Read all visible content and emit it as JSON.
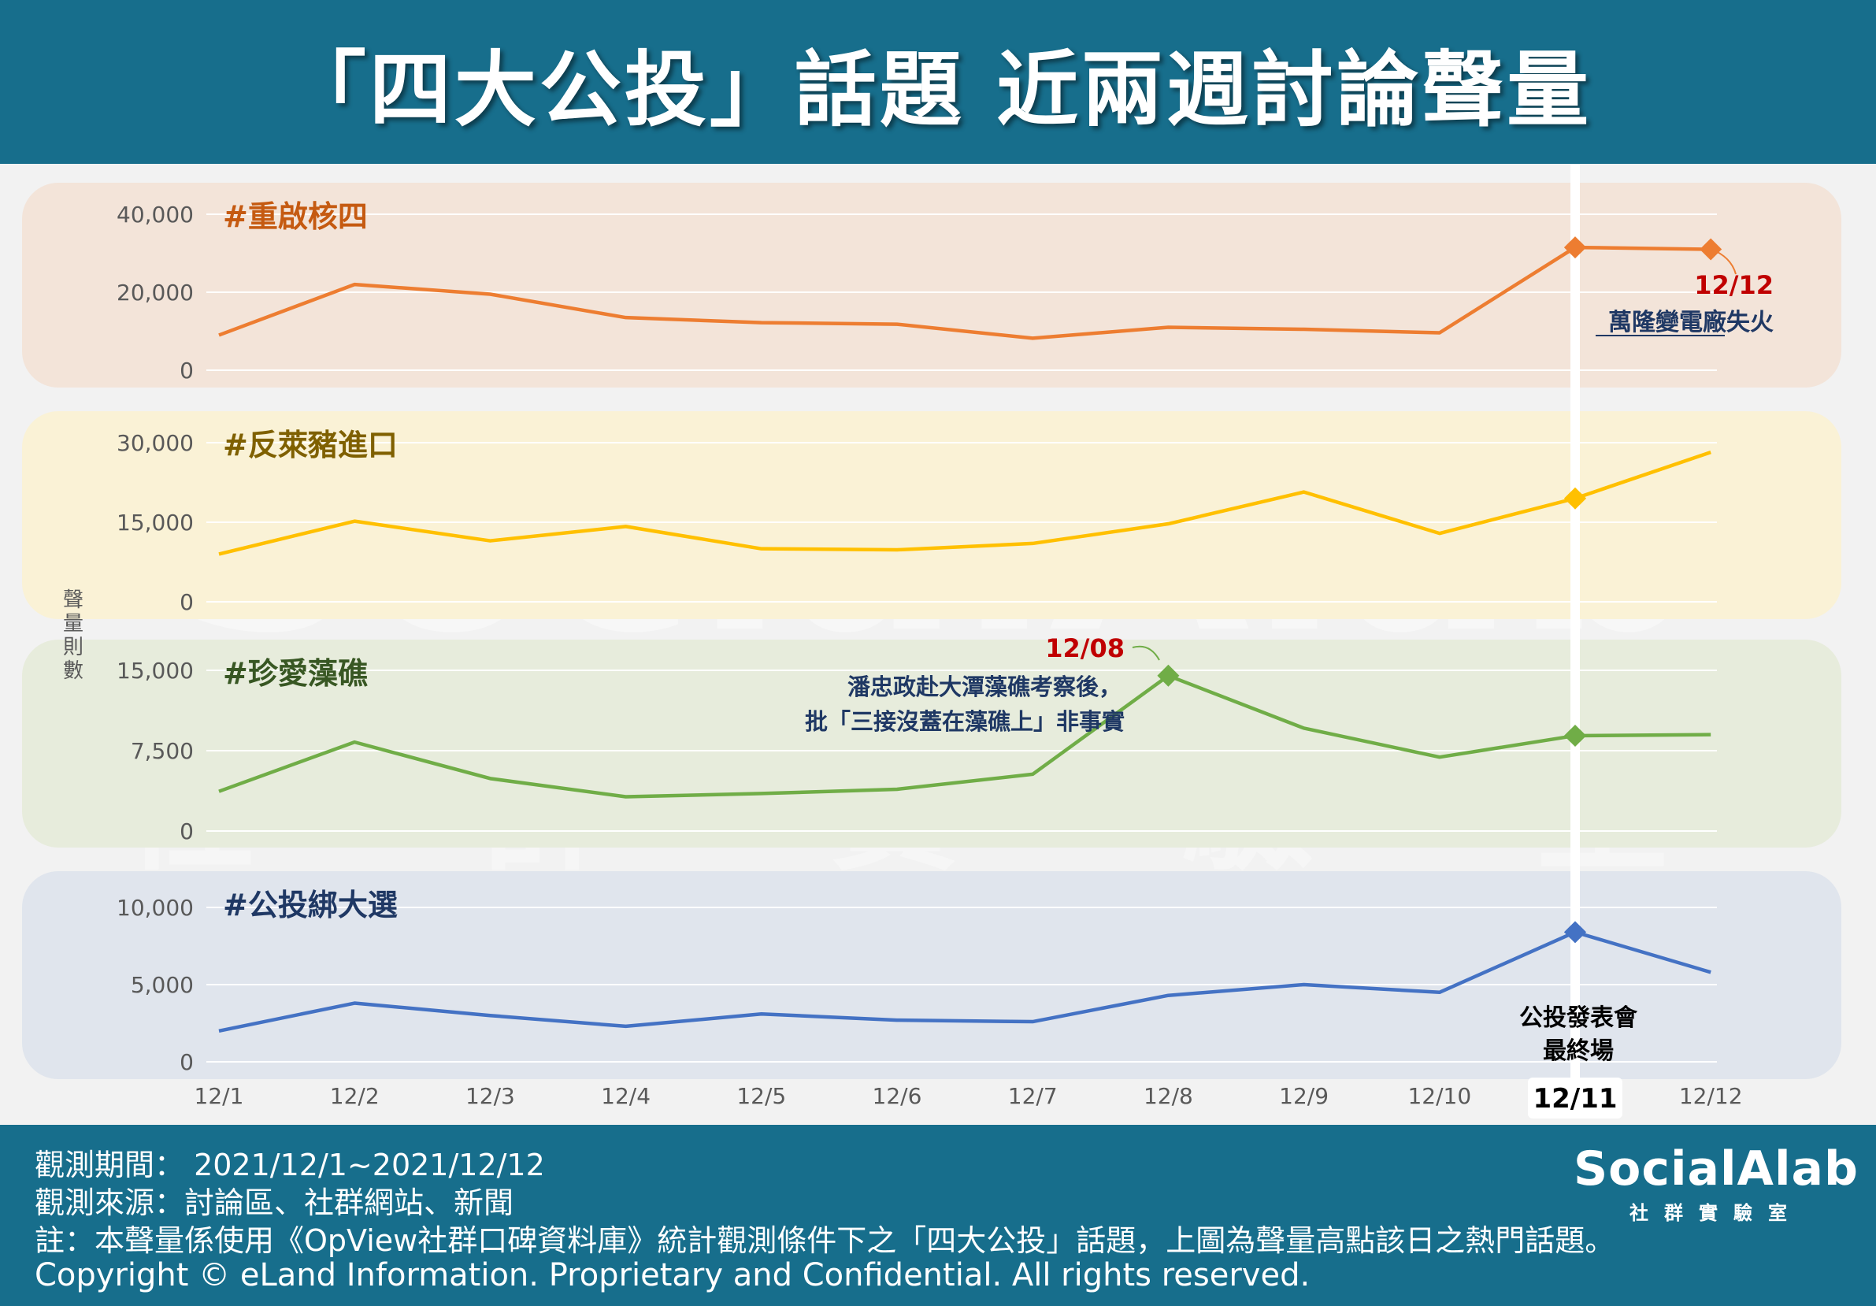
{
  "header": {
    "title": "「四大公投」話題  近兩週討論聲量"
  },
  "y_axis_label": "聲量則數",
  "watermark": {
    "brand": "SocialAlab",
    "sub": "社 群 實 驗 室"
  },
  "chart_data": {
    "type": "line",
    "x": [
      "12/1",
      "12/2",
      "12/3",
      "12/4",
      "12/5",
      "12/6",
      "12/7",
      "12/8",
      "12/9",
      "12/10",
      "12/11",
      "12/12"
    ],
    "highlight_x": "12/11",
    "highlight_note": [
      "公投發表會",
      "最終場"
    ],
    "panels": [
      {
        "name": "#重啟核四",
        "color": "#ed7d31",
        "band_color": "#f3e1d5",
        "title_color": "#c55a11",
        "ylim": [
          0,
          40000
        ],
        "ticks": [
          "0",
          "20,000",
          "40,000"
        ],
        "values": [
          9000,
          22000,
          19500,
          13500,
          12200,
          11800,
          8200,
          11000,
          10500,
          9600,
          31500,
          31000
        ],
        "markers": [
          "12/11",
          "12/12"
        ],
        "annotation": {
          "date": "12/12",
          "text": "萬隆變電廠失火"
        }
      },
      {
        "name": "#反萊豬進口",
        "color": "#ffc000",
        "band_color": "#fbf1d2",
        "title_color": "#7f6000",
        "ylim": [
          0,
          30000
        ],
        "ticks": [
          "0",
          "15,000",
          "30,000"
        ],
        "values": [
          9000,
          15200,
          11500,
          14200,
          10000,
          9800,
          11000,
          14700,
          20700,
          12900,
          19500,
          28200
        ],
        "markers": [
          "12/11"
        ]
      },
      {
        "name": "#珍愛藻礁",
        "color": "#70ad47",
        "band_color": "#e5ebd8",
        "title_color": "#385723",
        "ylim": [
          0,
          15000
        ],
        "ticks": [
          "0",
          "7,500",
          "15,000"
        ],
        "values": [
          3700,
          8300,
          4900,
          3200,
          3500,
          3900,
          5300,
          14500,
          9600,
          6900,
          8900,
          9000
        ],
        "markers": [
          "12/8",
          "12/11"
        ],
        "annotation": {
          "date": "12/08",
          "lines": [
            "潘忠政赴大潭藻礁考察後，",
            "批「三接沒蓋在藻礁上」非事實"
          ]
        }
      },
      {
        "name": "#公投綁大選",
        "color": "#4472c4",
        "band_color": "#dde3ec",
        "title_color": "#1f3864",
        "ylim": [
          0,
          10000
        ],
        "ticks": [
          "0",
          "5,000",
          "10,000"
        ],
        "values": [
          2000,
          3800,
          3000,
          2300,
          3100,
          2700,
          2600,
          4300,
          5000,
          4500,
          8400,
          5800
        ],
        "markers": [
          "12/11"
        ]
      }
    ]
  },
  "footer": {
    "period": "觀測期間： 2021/12/1~2021/12/12",
    "source": "觀測來源：討論區、社群網站、新聞",
    "note": "註：本聲量係使用《OpView社群口碑資料庫》統計觀測條件下之「四大公投」話題，上圖為聲量高點該日之熱門話題。",
    "copyright": "Copyright © eLand Information. Proprietary and Confidential. All rights reserved.",
    "logo_brand": "SocialAlab",
    "logo_sub": "社群實驗室"
  }
}
